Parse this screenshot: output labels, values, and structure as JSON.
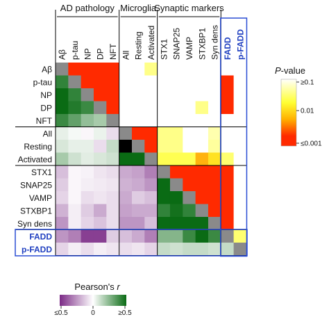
{
  "chart_data": {
    "type": "heatmap",
    "labels": [
      "Aβ",
      "p-tau",
      "NP",
      "DP",
      "NFT",
      "All",
      "Resting",
      "Activated",
      "STX1",
      "SNAP25",
      "VAMP",
      "STXBP1",
      "Syn dens",
      "FADD",
      "p-FADD"
    ],
    "groups": [
      {
        "label": "AD pathology",
        "count": 5
      },
      {
        "label": "Microglia",
        "count": 3
      },
      {
        "label": "Synaptic markers",
        "count": 5
      }
    ],
    "highlighted_labels": [
      "FADD",
      "p-FADD"
    ],
    "lower_triangle_metric": "Pearson's r",
    "upper_triangle_metric": "P-value",
    "lower_triangle_r": [
      [],
      [
        0.42
      ],
      [
        0.62,
        0.42
      ],
      [
        0.62,
        0.45,
        0.4
      ],
      [
        0.4,
        0.32,
        0.22,
        0.18
      ],
      [
        0.05,
        0.02,
        -0.02,
        0.04,
        -0.08
      ],
      [
        0.08,
        0.05,
        0.05,
        -0.08,
        0.12
      ],
      [
        0.18,
        0.1,
        0.06,
        0.08,
        0.1,
        0.55,
        0.55
      ],
      [
        -0.15,
        -0.02,
        -0.03,
        -0.06,
        -0.08,
        -0.2,
        -0.22,
        -0.3
      ],
      [
        -0.12,
        -0.02,
        -0.04,
        -0.05,
        -0.06,
        -0.18,
        -0.2,
        -0.25,
        0.6
      ],
      [
        -0.1,
        -0.02,
        -0.08,
        -0.06,
        -0.08,
        -0.2,
        -0.12,
        -0.15,
        0.55,
        0.6
      ],
      [
        -0.18,
        -0.04,
        -0.12,
        -0.2,
        -0.08,
        -0.22,
        -0.2,
        -0.2,
        0.42,
        0.48,
        0.42
      ],
      [
        -0.25,
        -0.04,
        -0.1,
        -0.14,
        -0.08,
        -0.25,
        -0.25,
        -0.15,
        0.62,
        0.62,
        0.62,
        0.65
      ],
      [
        -0.25,
        -0.3,
        -0.45,
        -0.45,
        -0.12,
        -0.15,
        -0.2,
        -0.3,
        0.25,
        0.25,
        0.4,
        0.7,
        0.4
      ],
      [
        -0.1,
        -0.04,
        -0.08,
        -0.04,
        -0.06,
        -0.08,
        -0.06,
        -0.1,
        0.12,
        0.1,
        0.12,
        0.12,
        0.1,
        0.12
      ]
    ],
    "upper_triangle_p": [
      [
        null,
        0.001,
        0.001,
        0.001,
        0.001,
        0.1,
        0.1,
        0.06,
        0.1,
        0.1,
        0.1,
        0.1,
        0.1,
        0.1,
        0.1
      ],
      [
        null,
        null,
        0.001,
        0.001,
        0.001,
        0.1,
        0.1,
        0.1,
        0.1,
        0.1,
        0.1,
        0.1,
        0.1,
        0.001,
        0.1
      ],
      [
        null,
        null,
        null,
        0.001,
        0.001,
        0.1,
        0.1,
        0.1,
        0.1,
        0.1,
        0.1,
        0.1,
        0.1,
        0.001,
        0.1
      ],
      [
        null,
        null,
        null,
        null,
        0.001,
        0.1,
        0.1,
        0.1,
        0.1,
        0.1,
        0.1,
        0.06,
        0.1,
        0.001,
        0.1
      ],
      [
        null,
        null,
        null,
        null,
        null,
        0.1,
        0.1,
        0.1,
        0.1,
        0.1,
        0.1,
        0.1,
        0.1,
        0.1,
        0.1
      ],
      [
        null,
        null,
        null,
        null,
        null,
        null,
        0.001,
        0.001,
        0.06,
        0.06,
        0.1,
        0.1,
        0.08,
        0.1,
        0.1
      ],
      [
        null,
        null,
        null,
        null,
        null,
        null,
        null,
        0.001,
        0.06,
        0.06,
        0.1,
        0.1,
        0.07,
        0.1,
        0.1
      ],
      [
        null,
        null,
        null,
        null,
        null,
        null,
        null,
        null,
        0.04,
        0.04,
        0.04,
        0.006,
        0.015,
        0.05,
        0.1
      ],
      [
        null,
        null,
        null,
        null,
        null,
        null,
        null,
        null,
        null,
        0.001,
        0.001,
        0.001,
        0.001,
        0.001,
        0.1
      ],
      [
        null,
        null,
        null,
        null,
        null,
        null,
        null,
        null,
        null,
        null,
        0.001,
        0.001,
        0.001,
        0.001,
        0.1
      ],
      [
        null,
        null,
        null,
        null,
        null,
        null,
        null,
        null,
        null,
        null,
        null,
        0.001,
        0.001,
        0.001,
        0.1
      ],
      [
        null,
        null,
        null,
        null,
        null,
        null,
        null,
        null,
        null,
        null,
        null,
        null,
        0.001,
        0.001,
        0.1
      ],
      [
        null,
        null,
        null,
        null,
        null,
        null,
        null,
        null,
        null,
        null,
        null,
        null,
        null,
        0.001,
        0.1
      ],
      [
        null,
        null,
        null,
        null,
        null,
        null,
        null,
        null,
        null,
        null,
        null,
        null,
        null,
        null,
        0.05
      ],
      []
    ],
    "pvalue_legend": {
      "title_italic": "P",
      "title_rest": "-value",
      "labels": [
        "≥0.1",
        "0.01",
        "≤0.001"
      ]
    },
    "r_legend": {
      "title": "Pearson's ",
      "title_italic": "r",
      "labels": [
        "≤0.5",
        "0",
        "≥0.5"
      ],
      "range": [
        -0.5,
        0.5
      ]
    },
    "colors": {
      "diagonal": "#8a8a8a",
      "green": "#0a6b14",
      "purple": "#7b2a86",
      "red": "#ff2a00",
      "highlight_box": "#2a4dd4",
      "highlight_text": "#1f3fc0"
    }
  }
}
